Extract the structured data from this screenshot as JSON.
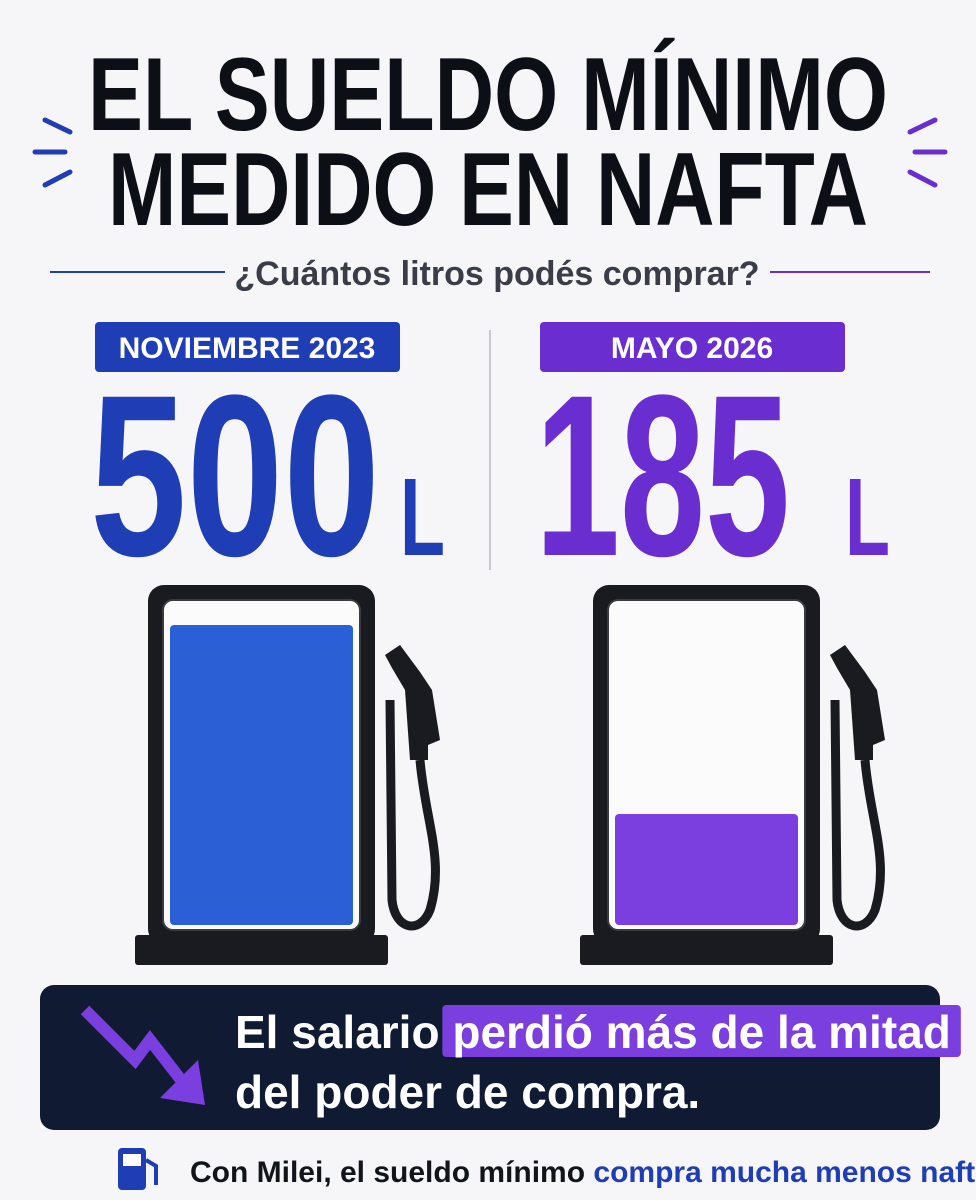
{
  "title": [
    "EL SUELDO MÍNIMO",
    "MEDIDO EN NAFTA"
  ],
  "subtitle": "¿Cuántos litros podés comprar?",
  "panels": [
    {
      "label": "NOVIEMBRE 2023",
      "value": 500,
      "unit": "L",
      "color": "#1f3db5",
      "fill": "#2a5fd6"
    },
    {
      "label": "MAYO 2026",
      "value": 185,
      "unit": "L",
      "color": "#6a2dcf",
      "fill": "#7b3fe0"
    }
  ],
  "banner": {
    "text_1": "El salario",
    "highlight": "perdió más de la mitad",
    "text_2": "del poder de compra."
  },
  "footer": {
    "text": "Con Milei, el sueldo mínimo",
    "highlight": "compra mucha menos nafta."
  }
}
